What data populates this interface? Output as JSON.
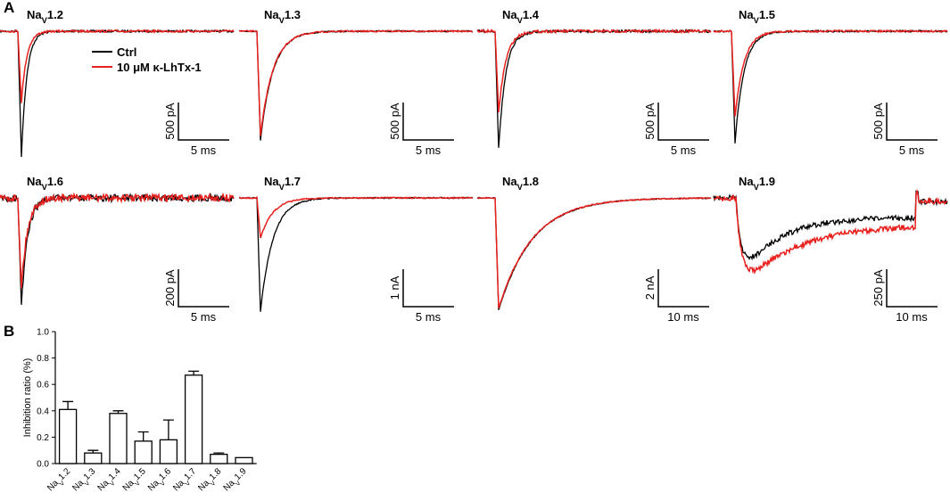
{
  "panel_labels": [
    "A",
    "B"
  ],
  "traces": {
    "legend": [
      {
        "name": "Ctrl",
        "color": "#000000"
      },
      {
        "name": "10 μM κ-LhTx-1",
        "color": "#e8201e"
      }
    ],
    "panels": [
      {
        "title": [
          "Na",
          "V",
          "1.2"
        ],
        "scale_y": "500 pA",
        "scale_x": "5 ms"
      },
      {
        "title": [
          "Na",
          "V",
          "1.3"
        ],
        "scale_y": "500 pA",
        "scale_x": "5 ms"
      },
      {
        "title": [
          "Na",
          "V",
          "1.4"
        ],
        "scale_y": "500 pA",
        "scale_x": "5 ms"
      },
      {
        "title": [
          "Na",
          "V",
          "1.5"
        ],
        "scale_y": "500 pA",
        "scale_x": "5 ms"
      },
      {
        "title": [
          "Na",
          "V",
          "1.6"
        ],
        "scale_y": "200 pA",
        "scale_x": "5 ms"
      },
      {
        "title": [
          "Na",
          "V",
          "1.7"
        ],
        "scale_y": "1 nA",
        "scale_x": "5 ms"
      },
      {
        "title": [
          "Na",
          "V",
          "1.8"
        ],
        "scale_y": "2 nA",
        "scale_x": "10 ms"
      },
      {
        "title": [
          "Na",
          "V",
          "1.9"
        ],
        "scale_y": "250 pA",
        "scale_x": "10 ms"
      }
    ]
  },
  "chart_data": {
    "type": "bar",
    "y_label": "Inhibition ratio (%)",
    "categories": [
      [
        "Na",
        "V",
        "1.2"
      ],
      [
        "Na",
        "V",
        "1.3"
      ],
      [
        "Na",
        "V",
        "1.4"
      ],
      [
        "Na",
        "V",
        "1.5"
      ],
      [
        "Na",
        "V",
        "1.6"
      ],
      [
        "Na",
        "V",
        "1.7"
      ],
      [
        "Na",
        "V",
        "1.8"
      ],
      [
        "Na",
        "V",
        "1.9"
      ]
    ],
    "values": [
      0.41,
      0.08,
      0.38,
      0.17,
      0.18,
      0.67,
      0.07,
      0.045
    ],
    "errors": [
      0.06,
      0.02,
      0.02,
      0.07,
      0.15,
      0.03,
      0.01,
      0
    ],
    "color": "#ffffff",
    "ylim": [
      0,
      1
    ],
    "yticks": [
      {
        "value": 0,
        "label": "0.0"
      },
      {
        "value": 0.2,
        "label": "0.2"
      },
      {
        "value": 0.4,
        "label": "0.4"
      },
      {
        "value": 0.6,
        "label": "0.6"
      },
      {
        "value": 0.8,
        "label": "0.8"
      },
      {
        "value": 1,
        "label": "1.0"
      }
    ]
  }
}
